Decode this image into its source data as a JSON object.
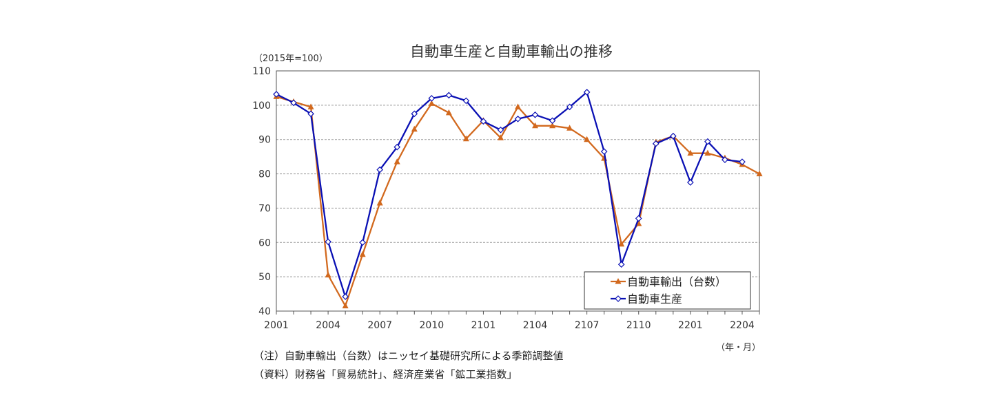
{
  "chart_data": {
    "type": "line",
    "title": "自動車生産と自動車輸出の推移",
    "ylabel": "（2015年=100）",
    "xlabel": "（年・月）",
    "ylim": [
      40,
      110
    ],
    "yticks": [
      40,
      50,
      60,
      70,
      80,
      90,
      100,
      110
    ],
    "grid": true,
    "legend_position": "bottom-right",
    "x_tick_labels": [
      "2001",
      "2004",
      "2007",
      "2010",
      "2101",
      "2104",
      "2107",
      "2110",
      "2201",
      "2204"
    ],
    "x": [
      "2001",
      "2002",
      "2003",
      "2004",
      "2005",
      "2006",
      "2007",
      "2008",
      "2009",
      "2010",
      "2011",
      "2012",
      "2101",
      "2102",
      "2103",
      "2104",
      "2105",
      "2106",
      "2107",
      "2108",
      "2109",
      "2110",
      "2111",
      "2112",
      "2201",
      "2202",
      "2203",
      "2204",
      "2205"
    ],
    "series": [
      {
        "name": "自動車輸出（台数）",
        "color": "#D2691E",
        "marker": "triangle",
        "values": [
          102.5,
          101,
          99.5,
          50.5,
          41.5,
          56.5,
          71.5,
          83.5,
          93,
          100.5,
          97.8,
          90.2,
          95.5,
          90.5,
          99.5,
          94,
          94,
          93.3,
          90,
          84.5,
          59.5,
          65.5,
          89.2,
          91,
          86,
          86,
          84.6,
          82.7,
          80
        ]
      },
      {
        "name": "自動車生産",
        "color": "#0A10B4",
        "marker": "diamond",
        "values": [
          103.2,
          100.7,
          97.5,
          60.2,
          44.2,
          60,
          81.2,
          87.8,
          97.5,
          102,
          102.9,
          101.3,
          95.3,
          92.8,
          96,
          97.2,
          95.5,
          99.5,
          103.8,
          86.5,
          53.6,
          67,
          88.8,
          91,
          77.5,
          89.4,
          84.1,
          83.5,
          null
        ]
      }
    ]
  },
  "notes": [
    "（注）自動車輸出（台数）はニッセイ基礎研究所による季節調整値",
    "（資料）財務省「貿易統計」、経済産業省「鉱工業指数」"
  ]
}
